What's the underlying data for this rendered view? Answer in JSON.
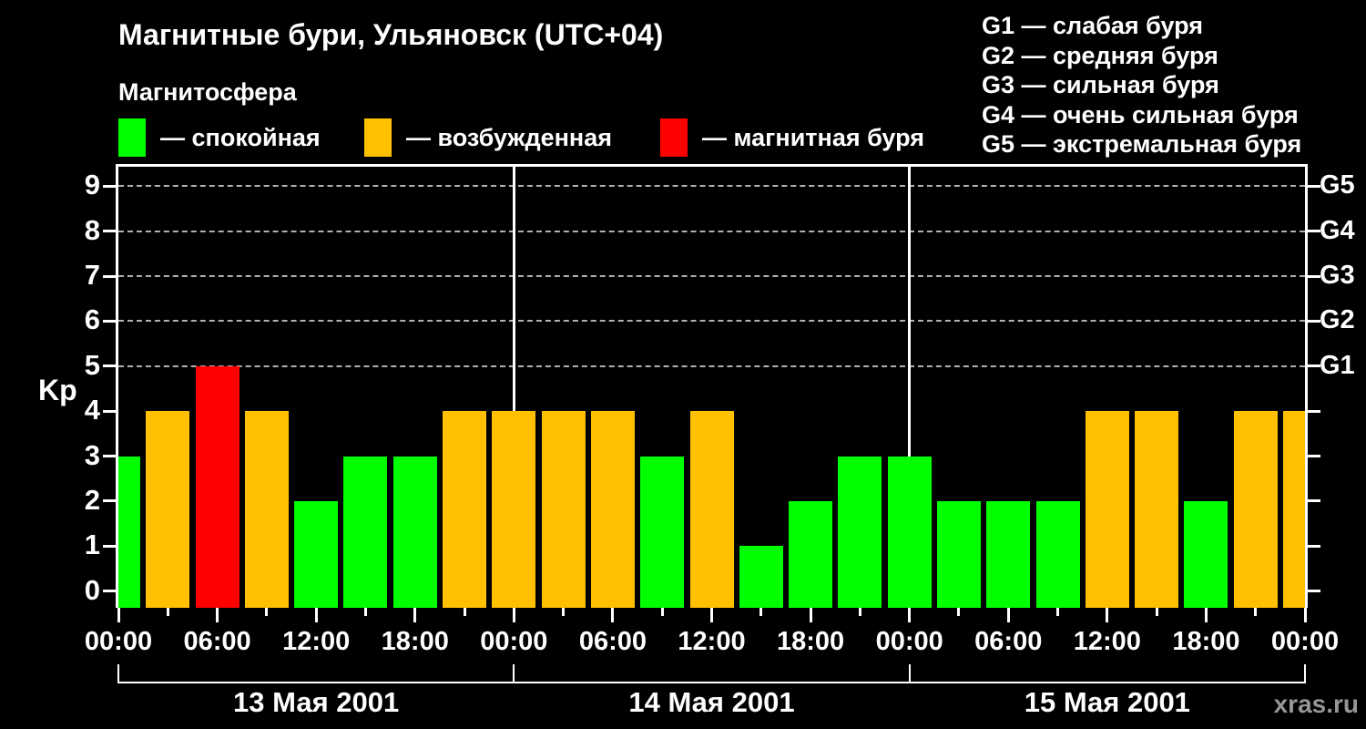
{
  "header": {
    "title": "Магнитные бури, Ульяновск (UTC+04)",
    "subtitle": "Магнитосфера"
  },
  "color_map": {
    "quiet": "#00ff00",
    "disturbed": "#ffc000",
    "storm": "#ff0000"
  },
  "state_legend": [
    {
      "key": "quiet",
      "label": "— спокойная",
      "color": "#00ff00"
    },
    {
      "key": "disturbed",
      "label": "— возбужденная",
      "color": "#ffc000"
    },
    {
      "key": "storm",
      "label": "— магнитная буря",
      "color": "#ff0000"
    }
  ],
  "g_scale_legend": [
    "G1 — слабая буря",
    "G2 — средняя буря",
    "G3 — сильная буря",
    "G4 — очень сильная буря",
    "G5 — экстремальная буря"
  ],
  "watermark": "xras.ru",
  "chart_data": {
    "type": "bar",
    "title": "Магнитные бури, Ульяновск (UTC+04)",
    "ylabel": "Kp",
    "ylim": [
      0,
      9
    ],
    "x_total_hours": 72,
    "grid_levels": [
      5,
      6,
      7,
      8,
      9
    ],
    "grid_color": "#b0b0b0",
    "y_axis": {
      "label": "Kp",
      "ticks": [
        0,
        1,
        2,
        3,
        4,
        5,
        6,
        7,
        8,
        9
      ]
    },
    "right_axis": [
      {
        "kp": 5,
        "label": "G1"
      },
      {
        "kp": 6,
        "label": "G2"
      },
      {
        "kp": 7,
        "label": "G3"
      },
      {
        "kp": 8,
        "label": "G4"
      },
      {
        "kp": 9,
        "label": "G5"
      }
    ],
    "x_axis": {
      "major": [
        {
          "hour": 0,
          "label": "00:00"
        },
        {
          "hour": 6,
          "label": "06:00"
        },
        {
          "hour": 12,
          "label": "12:00"
        },
        {
          "hour": 18,
          "label": "18:00"
        },
        {
          "hour": 24,
          "label": "00:00"
        },
        {
          "hour": 30,
          "label": "06:00"
        },
        {
          "hour": 36,
          "label": "12:00"
        },
        {
          "hour": 42,
          "label": "18:00"
        },
        {
          "hour": 48,
          "label": "00:00"
        },
        {
          "hour": 54,
          "label": "06:00"
        },
        {
          "hour": 60,
          "label": "12:00"
        },
        {
          "hour": 66,
          "label": "18:00"
        },
        {
          "hour": 72,
          "label": "00:00"
        }
      ],
      "minor_hours": [
        3,
        9,
        15,
        21,
        27,
        33,
        39,
        45,
        51,
        57,
        63,
        69
      ]
    },
    "days": [
      {
        "label": "13 Мая 2001",
        "start_hour": 0,
        "end_hour": 24
      },
      {
        "label": "14 Мая 2001",
        "start_hour": 24,
        "end_hour": 48
      },
      {
        "label": "15 Мая 2001",
        "start_hour": 48,
        "end_hour": 72
      }
    ],
    "bars": [
      {
        "hour": 0,
        "kp": 3,
        "state": "quiet"
      },
      {
        "hour": 3,
        "kp": 4,
        "state": "disturbed"
      },
      {
        "hour": 6,
        "kp": 5,
        "state": "storm"
      },
      {
        "hour": 9,
        "kp": 4,
        "state": "disturbed"
      },
      {
        "hour": 12,
        "kp": 2,
        "state": "quiet"
      },
      {
        "hour": 15,
        "kp": 3,
        "state": "quiet"
      },
      {
        "hour": 18,
        "kp": 3,
        "state": "quiet"
      },
      {
        "hour": 21,
        "kp": 4,
        "state": "disturbed"
      },
      {
        "hour": 24,
        "kp": 4,
        "state": "disturbed"
      },
      {
        "hour": 27,
        "kp": 4,
        "state": "disturbed"
      },
      {
        "hour": 30,
        "kp": 4,
        "state": "disturbed"
      },
      {
        "hour": 33,
        "kp": 3,
        "state": "quiet"
      },
      {
        "hour": 36,
        "kp": 4,
        "state": "disturbed"
      },
      {
        "hour": 39,
        "kp": 1,
        "state": "quiet"
      },
      {
        "hour": 42,
        "kp": 2,
        "state": "quiet"
      },
      {
        "hour": 45,
        "kp": 3,
        "state": "quiet"
      },
      {
        "hour": 48,
        "kp": 3,
        "state": "quiet"
      },
      {
        "hour": 51,
        "kp": 2,
        "state": "quiet"
      },
      {
        "hour": 54,
        "kp": 2,
        "state": "quiet"
      },
      {
        "hour": 57,
        "kp": 2,
        "state": "quiet"
      },
      {
        "hour": 60,
        "kp": 4,
        "state": "disturbed"
      },
      {
        "hour": 63,
        "kp": 4,
        "state": "disturbed"
      },
      {
        "hour": 66,
        "kp": 2,
        "state": "quiet"
      },
      {
        "hour": 69,
        "kp": 4,
        "state": "disturbed"
      },
      {
        "hour": 72,
        "kp": 4,
        "state": "disturbed"
      }
    ]
  }
}
